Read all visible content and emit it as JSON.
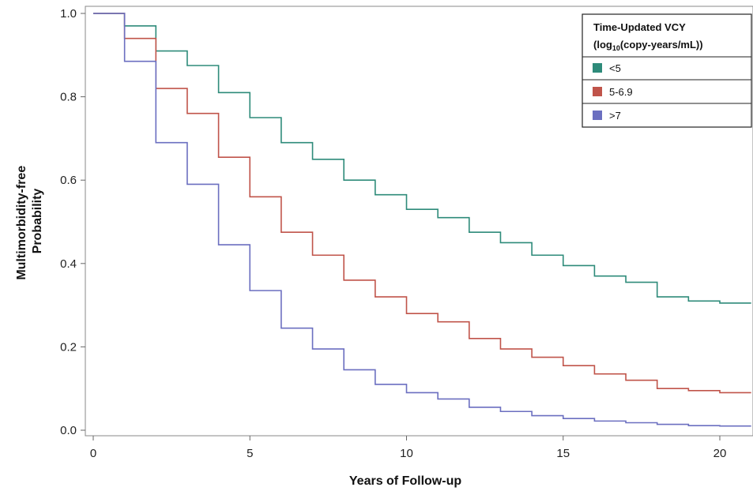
{
  "chart_data": {
    "type": "line",
    "step": true,
    "xlabel": "Years of Follow-up",
    "ylabel_lines": [
      "Multimorbidity-free",
      "Probability"
    ],
    "xlim": [
      0,
      21
    ],
    "ylim": [
      0,
      1
    ],
    "x_ticks": [
      "0",
      "5",
      "10",
      "15",
      "20"
    ],
    "y_ticks": [
      "0.0",
      "0.2",
      "0.4",
      "0.6",
      "0.8",
      "1.0"
    ],
    "grid": false,
    "legend": {
      "position": "top-right",
      "title_line1": "Time-Updated VCY",
      "title_pre": "(log",
      "title_sub": "10",
      "title_post": "(copy-years/mL))"
    },
    "series": [
      {
        "name": "<5",
        "color": "#2e8b7a",
        "x": [
          0,
          1,
          2,
          3,
          4,
          5,
          6,
          7,
          8,
          9,
          10,
          11,
          12,
          13,
          14,
          15,
          16,
          17,
          18,
          19,
          20,
          21
        ],
        "y": [
          1.0,
          0.97,
          0.91,
          0.875,
          0.81,
          0.75,
          0.69,
          0.65,
          0.6,
          0.565,
          0.53,
          0.51,
          0.475,
          0.45,
          0.42,
          0.395,
          0.37,
          0.355,
          0.32,
          0.31,
          0.305,
          0.305
        ]
      },
      {
        "name": "5-6.9",
        "color": "#c0544a",
        "x": [
          0,
          1,
          2,
          3,
          4,
          5,
          6,
          7,
          8,
          9,
          10,
          11,
          12,
          13,
          14,
          15,
          16,
          17,
          18,
          19,
          20,
          21
        ],
        "y": [
          1.0,
          0.94,
          0.82,
          0.76,
          0.655,
          0.56,
          0.475,
          0.42,
          0.36,
          0.32,
          0.28,
          0.26,
          0.22,
          0.195,
          0.175,
          0.155,
          0.135,
          0.12,
          0.1,
          0.095,
          0.09,
          0.09
        ]
      },
      {
        "name": ">7",
        "color": "#6b6fc0",
        "x": [
          0,
          1,
          2,
          3,
          4,
          5,
          6,
          7,
          8,
          9,
          10,
          11,
          12,
          13,
          14,
          15,
          16,
          17,
          18,
          19,
          20,
          21
        ],
        "y": [
          1.0,
          0.885,
          0.69,
          0.59,
          0.445,
          0.335,
          0.245,
          0.195,
          0.145,
          0.11,
          0.09,
          0.075,
          0.055,
          0.045,
          0.035,
          0.028,
          0.022,
          0.018,
          0.014,
          0.011,
          0.01,
          0.01
        ]
      }
    ]
  }
}
